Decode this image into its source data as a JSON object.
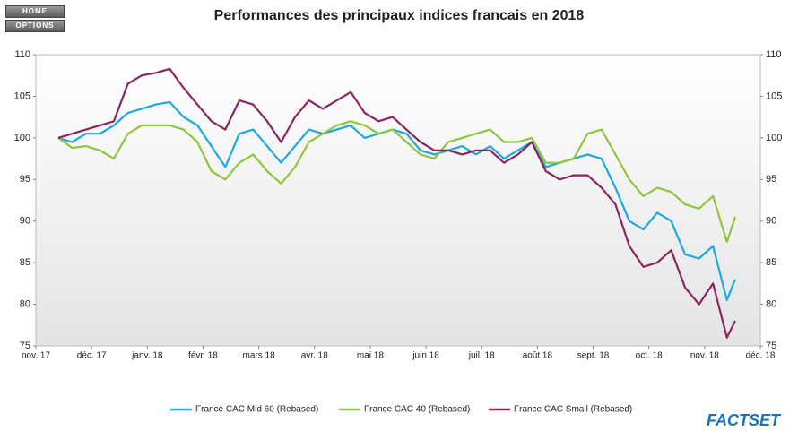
{
  "nav": {
    "buttons": [
      "HOME",
      "OPTIONS"
    ]
  },
  "logo": "FACTSET",
  "chart_data": {
    "type": "line",
    "title": "Performances des principaux indices francais en 2018",
    "x": [
      0.4,
      0.65,
      0.9,
      1.15,
      1.4,
      1.65,
      1.9,
      2.15,
      2.4,
      2.65,
      2.9,
      3.15,
      3.4,
      3.65,
      3.9,
      4.15,
      4.4,
      4.65,
      4.9,
      5.15,
      5.4,
      5.65,
      5.9,
      6.15,
      6.4,
      6.65,
      6.9,
      7.15,
      7.4,
      7.65,
      7.9,
      8.15,
      8.4,
      8.65,
      8.9,
      9.15,
      9.4,
      9.65,
      9.9,
      10.15,
      10.4,
      10.65,
      10.9,
      11.15,
      11.4,
      11.65,
      11.9,
      12.15,
      12.4,
      12.55
    ],
    "series": [
      {
        "name": "France CAC Mid 60 (Rebased)",
        "color": "#1ba9e1",
        "values": [
          100,
          99.5,
          100.5,
          100.5,
          101.5,
          103,
          103.5,
          104,
          104.3,
          102.5,
          101.5,
          99,
          96.5,
          100.5,
          101,
          99,
          97,
          99,
          101,
          100.5,
          101,
          101.5,
          100,
          100.5,
          101,
          100.5,
          98.5,
          98,
          98.5,
          99,
          98,
          99,
          97.5,
          98.5,
          99.5,
          96.5,
          97,
          97.5,
          98,
          97.5,
          94,
          90,
          89,
          91,
          90,
          86,
          85.5,
          87,
          80.5,
          83
        ]
      },
      {
        "name": "France CAC 40 (Rebased)",
        "color": "#8dc63f",
        "values": [
          100,
          98.8,
          99,
          98.5,
          97.5,
          100.5,
          101.5,
          101.5,
          101.5,
          101,
          99.5,
          96,
          95,
          97,
          98,
          96,
          94.5,
          96.5,
          99.5,
          100.5,
          101.5,
          102,
          101.5,
          100.5,
          101,
          99.5,
          98,
          97.5,
          99.5,
          100,
          100.5,
          101,
          99.5,
          99.5,
          100,
          97,
          97,
          97.5,
          100.5,
          101,
          98,
          95,
          93,
          94,
          93.5,
          92,
          91.5,
          93,
          87.5,
          90.5
        ]
      },
      {
        "name": "France CAC Small (Rebased)",
        "color": "#8b2560",
        "values": [
          100,
          100.5,
          101,
          101.5,
          102,
          106.5,
          107.5,
          107.8,
          108.3,
          106,
          104,
          102,
          101,
          104.5,
          104,
          102,
          99.5,
          102.5,
          104.5,
          103.5,
          104.5,
          105.5,
          103,
          102,
          102.5,
          101,
          99.5,
          98.5,
          98.5,
          98,
          98.5,
          98.5,
          97,
          98,
          99.5,
          96,
          95,
          95.5,
          95.5,
          94,
          92,
          87,
          84.5,
          85,
          86.5,
          82,
          80,
          82.5,
          76,
          78
        ]
      }
    ],
    "xlim": [
      0,
      13
    ],
    "xticks": [
      {
        "value": 0,
        "label": "nov. 17"
      },
      {
        "value": 1,
        "label": "déc. 17"
      },
      {
        "value": 2,
        "label": "janv. 18"
      },
      {
        "value": 3,
        "label": "févr. 18"
      },
      {
        "value": 4,
        "label": "mars 18"
      },
      {
        "value": 5,
        "label": "avr. 18"
      },
      {
        "value": 6,
        "label": "mai 18"
      },
      {
        "value": 7,
        "label": "juin 18"
      },
      {
        "value": 8,
        "label": "juil. 18"
      },
      {
        "value": 9,
        "label": "août 18"
      },
      {
        "value": 10,
        "label": "sept. 18"
      },
      {
        "value": 11,
        "label": "oct. 18"
      },
      {
        "value": 12,
        "label": "nov. 18"
      },
      {
        "value": 13,
        "label": "déc. 18"
      }
    ],
    "ylim": [
      75,
      110
    ],
    "yticks": [
      75,
      80,
      85,
      90,
      95,
      100,
      105,
      110
    ],
    "grid": false,
    "legend": "bottom"
  }
}
